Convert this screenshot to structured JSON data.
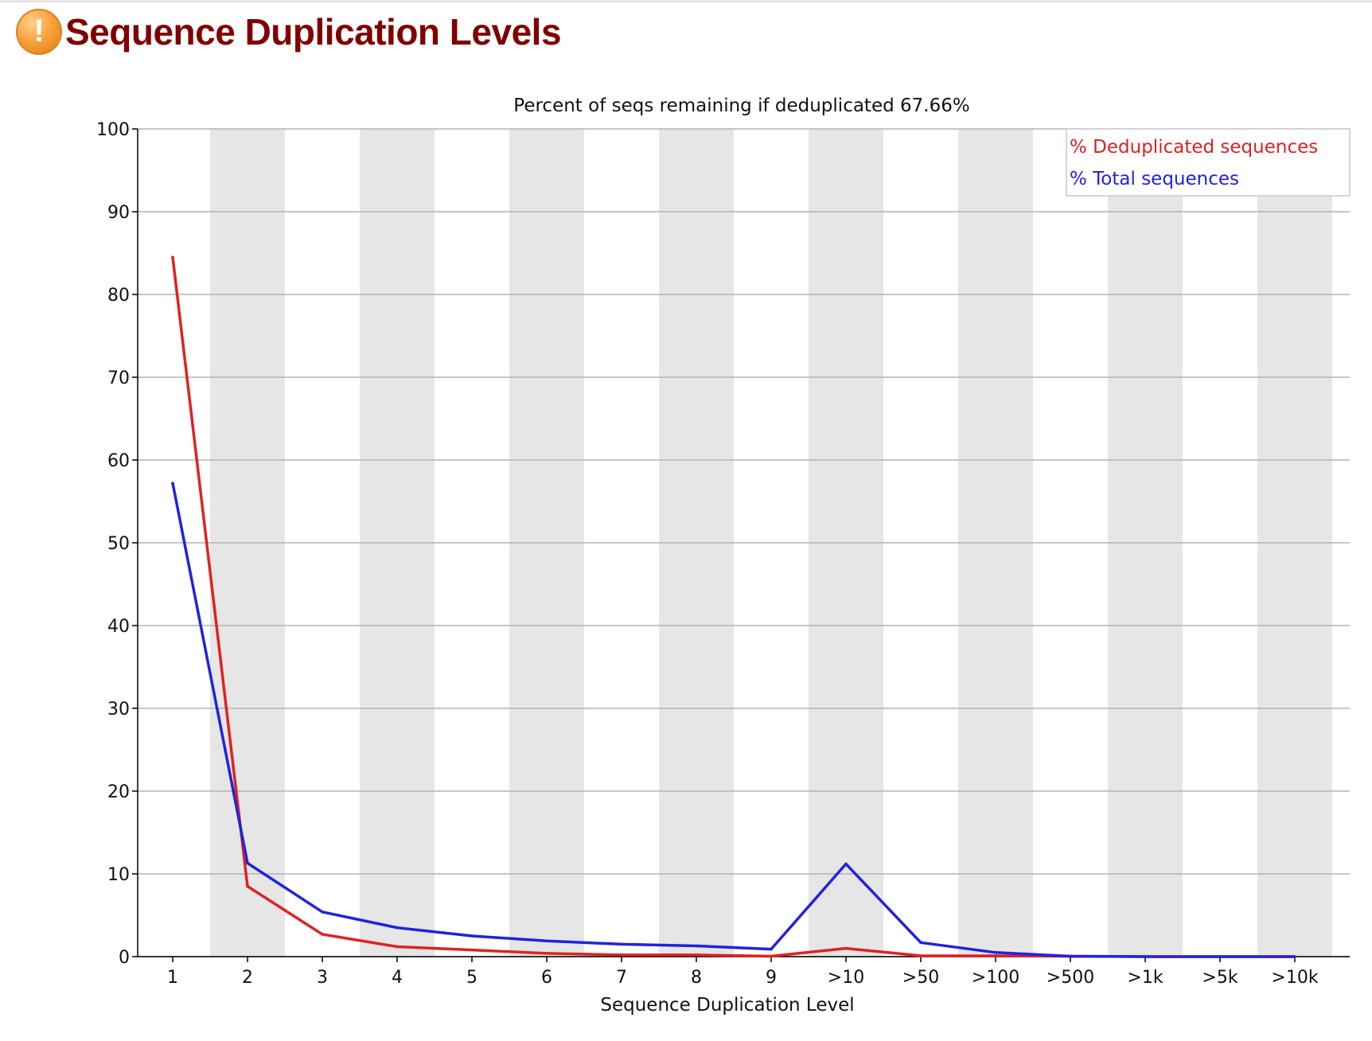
{
  "header": {
    "title": "Sequence Duplication Levels",
    "status_icon": "warning-icon",
    "status_glyph": "!",
    "status_color": "#f7a13a",
    "title_color": "#800000"
  },
  "chart_data": {
    "type": "line",
    "title": "Percent of seqs remaining if deduplicated 67.66%",
    "xlabel": "Sequence Duplication Level",
    "ylabel": "",
    "categories": [
      "1",
      "2",
      "3",
      "4",
      "5",
      "6",
      "7",
      "8",
      "9",
      ">10",
      ">50",
      ">100",
      ">500",
      ">1k",
      ">5k",
      ">10k"
    ],
    "ylim": [
      0,
      100
    ],
    "yticks": [
      0,
      10,
      20,
      30,
      40,
      50,
      60,
      70,
      80,
      90,
      100
    ],
    "grid": true,
    "alternating_bands": true,
    "legend_position": "top-right",
    "series": [
      {
        "name": "% Deduplicated sequences",
        "color": "#dd2222",
        "values": [
          84.5,
          8.5,
          2.7,
          1.2,
          0.8,
          0.4,
          0.2,
          0.2,
          0.05,
          1.0,
          0.1,
          0.1,
          0.05,
          0.0,
          0.0,
          0.0
        ]
      },
      {
        "name": "% Total sequences",
        "color": "#2222dd",
        "values": [
          57.2,
          11.3,
          5.4,
          3.5,
          2.5,
          1.9,
          1.5,
          1.3,
          0.9,
          11.2,
          1.7,
          0.5,
          0.05,
          0.0,
          0.0,
          0.0
        ]
      }
    ]
  }
}
